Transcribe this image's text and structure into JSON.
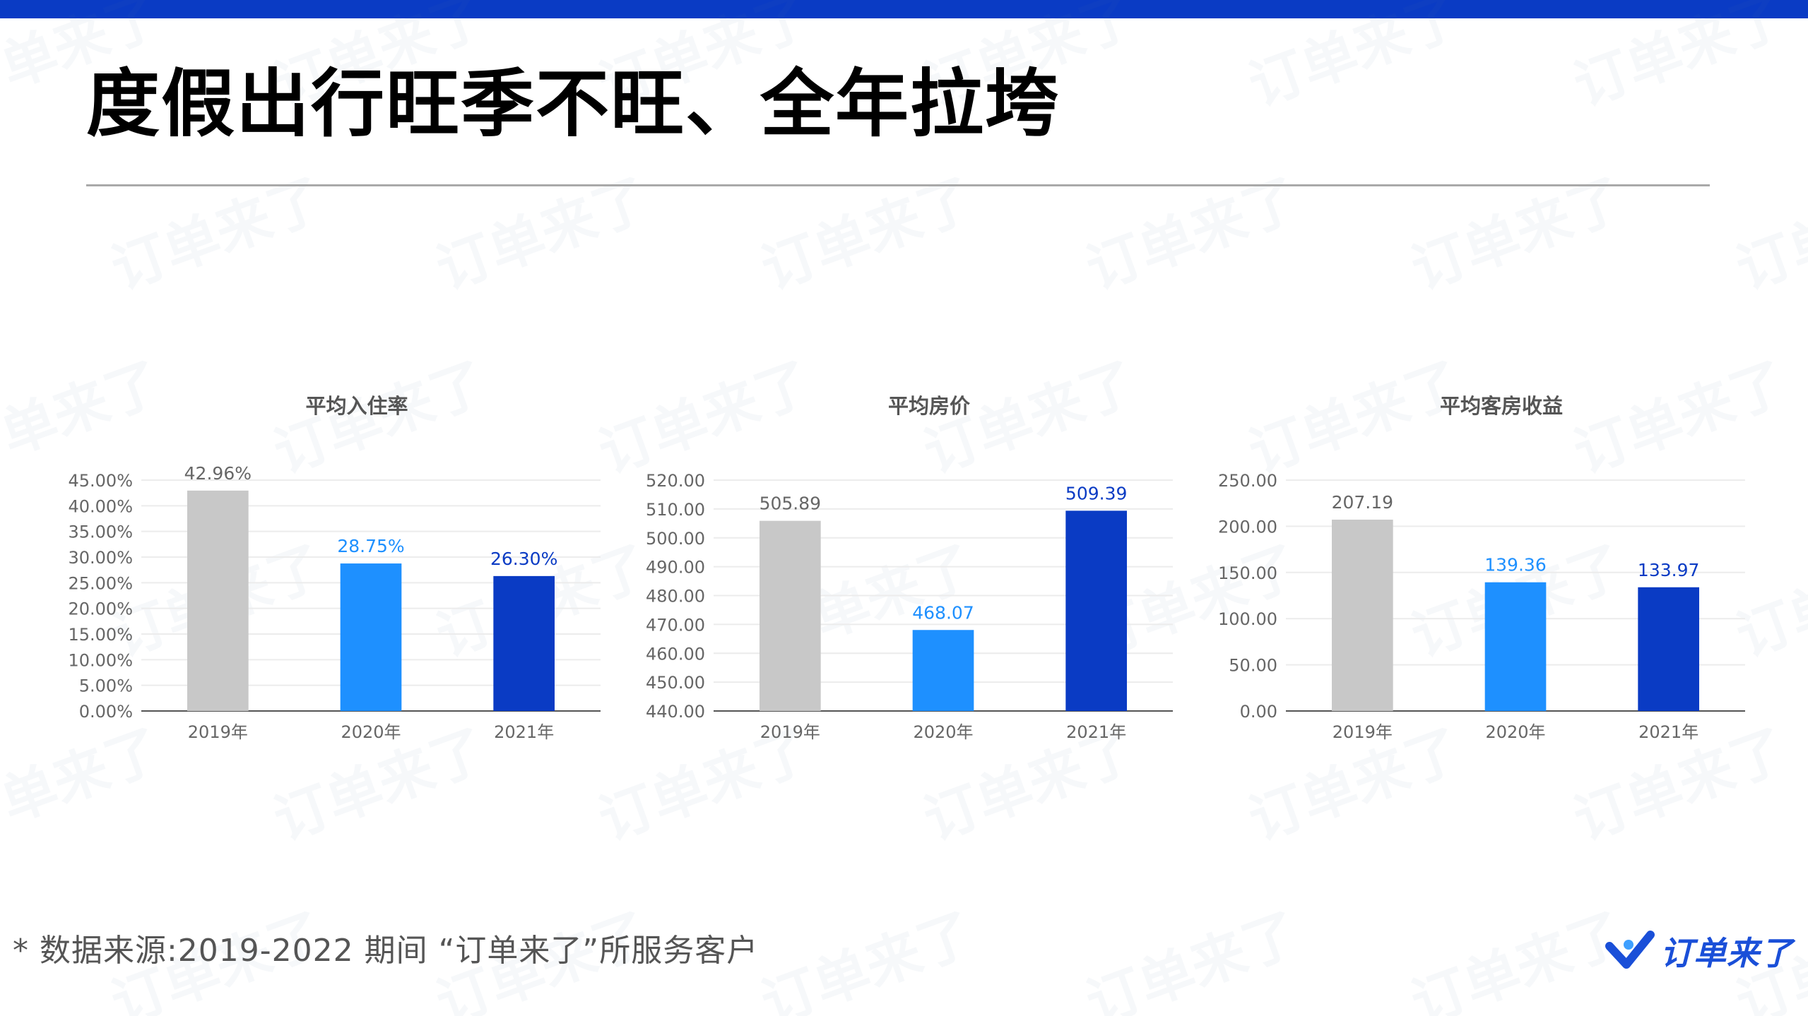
{
  "page": {
    "title": "度假出行旺季不旺、全年拉垮",
    "footnote": "* 数据来源:2019-2022 期间 “订单来了”所服务客户",
    "logo_text": "订单来了",
    "watermark_text": "订单来了"
  },
  "colors": {
    "accent": "#0a3bc4",
    "gray": "#c8c8c8",
    "light_blue": "#1e90ff",
    "dark_blue": "#0a3bc4"
  },
  "chart_data": [
    {
      "type": "bar",
      "title": "平均入住率",
      "categories": [
        "2019年",
        "2020年",
        "2021年"
      ],
      "values": [
        42.96,
        28.75,
        26.3
      ],
      "value_labels": [
        "42.96%",
        "28.75%",
        "26.30%"
      ],
      "bar_colors": [
        "#c8c8c8",
        "#1e90ff",
        "#0a3bc4"
      ],
      "label_colors": [
        "#666666",
        "#1e90ff",
        "#0a3bc4"
      ],
      "ylim": [
        0,
        45
      ],
      "yticks": [
        "0.00%",
        "5.00%",
        "10.00%",
        "15.00%",
        "20.00%",
        "25.00%",
        "30.00%",
        "35.00%",
        "40.00%",
        "45.00%"
      ],
      "grid": true
    },
    {
      "type": "bar",
      "title": "平均房价",
      "categories": [
        "2019年",
        "2020年",
        "2021年"
      ],
      "values": [
        505.89,
        468.07,
        509.39
      ],
      "value_labels": [
        "505.89",
        "468.07",
        "509.39"
      ],
      "bar_colors": [
        "#c8c8c8",
        "#1e90ff",
        "#0a3bc4"
      ],
      "label_colors": [
        "#666666",
        "#1e90ff",
        "#0a3bc4"
      ],
      "ylim": [
        440,
        520
      ],
      "yticks": [
        "440.00",
        "450.00",
        "460.00",
        "470.00",
        "480.00",
        "490.00",
        "500.00",
        "510.00",
        "520.00"
      ],
      "grid": true
    },
    {
      "type": "bar",
      "title": "平均客房收益",
      "categories": [
        "2019年",
        "2020年",
        "2021年"
      ],
      "values": [
        207.19,
        139.36,
        133.97
      ],
      "value_labels": [
        "207.19",
        "139.36",
        "133.97"
      ],
      "bar_colors": [
        "#c8c8c8",
        "#1e90ff",
        "#0a3bc4"
      ],
      "label_colors": [
        "#666666",
        "#1e90ff",
        "#0a3bc4"
      ],
      "ylim": [
        0,
        250
      ],
      "yticks": [
        "0.00",
        "50.00",
        "100.00",
        "150.00",
        "200.00",
        "250.00"
      ],
      "grid": true
    }
  ]
}
